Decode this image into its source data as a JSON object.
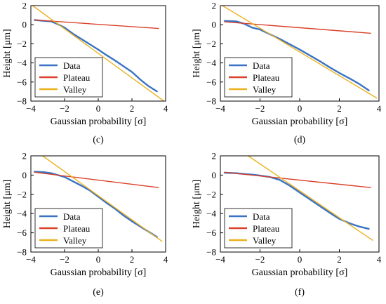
{
  "colors": {
    "data": "#3A73C4",
    "plateau": "#D9412A",
    "valley": "#EBB11E",
    "axis": "#000000"
  },
  "chart_data": [
    {
      "type": "line",
      "panel_label": "(c)",
      "xlabel": "Gaussian probability [σ]",
      "ylabel": "Height [μm]",
      "xlim": [
        -4,
        4
      ],
      "ylim": [
        -8,
        2
      ],
      "xticks": [
        "−4",
        "−2",
        "0",
        "2",
        "4"
      ],
      "yticks": [
        "2",
        "0",
        "−2",
        "−4",
        "−6",
        "−8"
      ],
      "grid": false,
      "legend_position": "bottom-left",
      "series": [
        {
          "name": "Data",
          "x": [
            -3.8,
            -3.2,
            -2.8,
            -2.4,
            -2.0,
            -1.5,
            -1.0,
            -0.5,
            0.0,
            0.5,
            1.0,
            1.5,
            2.0,
            2.5,
            3.0,
            3.5
          ],
          "y": [
            0.5,
            0.4,
            0.35,
            0.05,
            -0.3,
            -0.95,
            -1.5,
            -2.05,
            -2.6,
            -3.2,
            -3.75,
            -4.35,
            -4.95,
            -5.75,
            -6.45,
            -7.0
          ]
        },
        {
          "name": "Plateau",
          "x": [
            -3.8,
            3.6
          ],
          "y": [
            0.5,
            -0.4
          ]
        },
        {
          "name": "Valley",
          "x": [
            -3.9,
            3.9
          ],
          "y": [
            2.0,
            -8.0
          ]
        }
      ]
    },
    {
      "type": "line",
      "panel_label": "(d)",
      "xlabel": "Gaussian probability [σ]",
      "ylabel": "Height [μm]",
      "xlim": [
        -4,
        4
      ],
      "ylim": [
        -8,
        2
      ],
      "xticks": [
        "−4",
        "−2",
        "0",
        "2",
        "4"
      ],
      "yticks": [
        "2",
        "0",
        "−2",
        "−4",
        "−6",
        "−8"
      ],
      "grid": false,
      "legend_position": "bottom-left",
      "series": [
        {
          "name": "Data",
          "x": [
            -3.8,
            -3.2,
            -2.8,
            -2.4,
            -2.0,
            -1.5,
            -1.0,
            -0.5,
            0.0,
            0.5,
            1.0,
            1.5,
            2.0,
            2.5,
            3.0,
            3.5
          ],
          "y": [
            0.4,
            0.35,
            0.1,
            -0.3,
            -0.5,
            -1.0,
            -1.5,
            -2.05,
            -2.6,
            -3.2,
            -3.8,
            -4.45,
            -5.05,
            -5.6,
            -6.2,
            -6.9
          ]
        },
        {
          "name": "Plateau",
          "x": [
            -3.8,
            3.6
          ],
          "y": [
            0.3,
            -0.9
          ]
        },
        {
          "name": "Valley",
          "x": [
            -3.9,
            3.9
          ],
          "y": [
            2.0,
            -7.7
          ]
        }
      ]
    },
    {
      "type": "line",
      "panel_label": "(e)",
      "xlabel": "Gaussian probability [σ]",
      "ylabel": "Height [μm]",
      "xlim": [
        -4,
        4
      ],
      "ylim": [
        -8,
        2
      ],
      "xticks": [
        "−4",
        "−2",
        "0",
        "2",
        "4"
      ],
      "yticks": [
        "2",
        "0",
        "−2",
        "−4",
        "−6",
        "−8"
      ],
      "grid": false,
      "legend_position": "bottom-left",
      "series": [
        {
          "name": "Data",
          "x": [
            -3.8,
            -3.2,
            -2.8,
            -2.4,
            -2.0,
            -1.5,
            -1.0,
            -0.5,
            0.0,
            0.5,
            1.0,
            1.5,
            2.0,
            2.5,
            3.0,
            3.5
          ],
          "y": [
            0.35,
            0.3,
            0.2,
            0.0,
            -0.2,
            -0.65,
            -1.1,
            -1.6,
            -2.25,
            -2.9,
            -3.5,
            -4.2,
            -4.8,
            -5.35,
            -5.9,
            -6.45
          ]
        },
        {
          "name": "Plateau",
          "x": [
            -3.8,
            3.6
          ],
          "y": [
            0.3,
            -1.3
          ]
        },
        {
          "name": "Valley",
          "x": [
            -3.3,
            3.8
          ],
          "y": [
            2.0,
            -6.9
          ]
        }
      ]
    },
    {
      "type": "line",
      "panel_label": "(f)",
      "xlabel": "Gaussian probability [σ]",
      "ylabel": "Height [μm]",
      "xlim": [
        -4,
        4
      ],
      "ylim": [
        -8,
        2
      ],
      "xticks": [
        "−4",
        "−2",
        "0",
        "2",
        "4"
      ],
      "yticks": [
        "2",
        "0",
        "−2",
        "−4",
        "−6",
        "−8"
      ],
      "grid": false,
      "legend_position": "bottom-left",
      "series": [
        {
          "name": "Data",
          "x": [
            -3.8,
            -3.2,
            -2.8,
            -2.4,
            -2.0,
            -1.5,
            -1.0,
            -0.5,
            0.0,
            0.5,
            1.0,
            1.5,
            2.0,
            2.5,
            3.0,
            3.5
          ],
          "y": [
            0.25,
            0.2,
            0.12,
            0.05,
            -0.05,
            -0.2,
            -0.5,
            -1.1,
            -1.8,
            -2.5,
            -3.2,
            -3.9,
            -4.55,
            -5.0,
            -5.35,
            -5.6
          ]
        },
        {
          "name": "Plateau",
          "x": [
            -3.8,
            3.6
          ],
          "y": [
            0.3,
            -1.3
          ]
        },
        {
          "name": "Valley",
          "x": [
            -2.6,
            3.7
          ],
          "y": [
            2.0,
            -6.8
          ]
        }
      ]
    }
  ]
}
